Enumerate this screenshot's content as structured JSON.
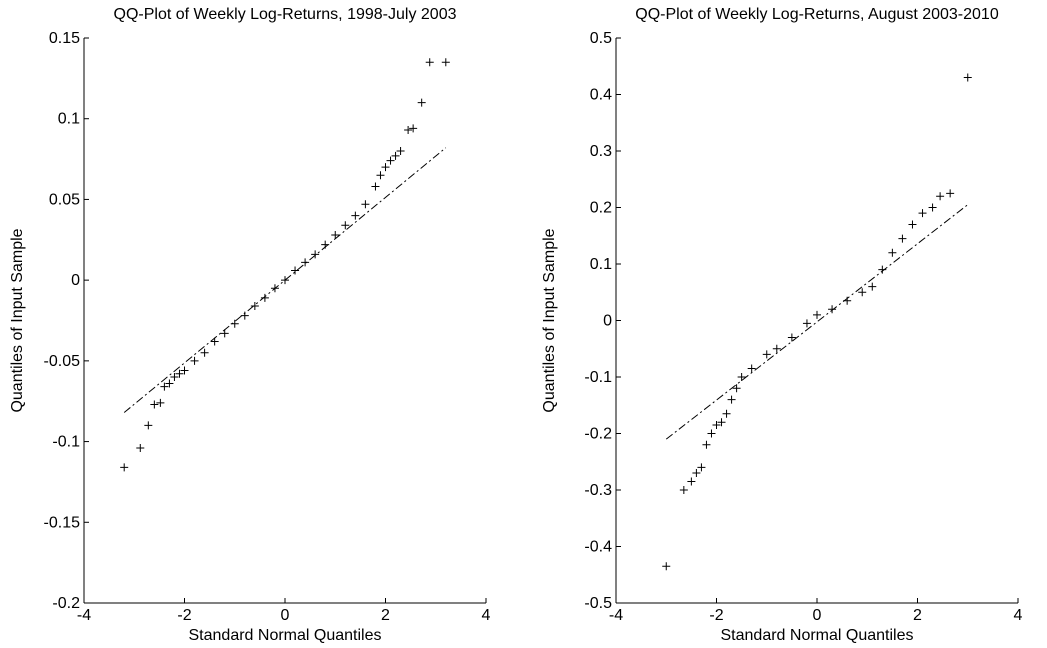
{
  "chart_data": [
    {
      "type": "scatter",
      "title": "QQ-Plot of Weekly Log-Returns, 1998-July 2003",
      "x_label": "Standard Normal Quantiles",
      "y_label": "Quantiles of Input Sample",
      "xlim": [
        -4,
        4
      ],
      "xticks": [
        -4,
        -2,
        0,
        2,
        4
      ],
      "ylim": [
        -0.2,
        0.15
      ],
      "yticks": [
        -0.2,
        -0.15,
        -0.1,
        -0.05,
        0,
        0.05,
        0.1,
        0.15
      ],
      "points": {
        "color": "#000000",
        "x": [
          -3.2,
          -2.88,
          -2.72,
          -2.6,
          -2.48,
          -2.4,
          -2.3,
          -2.2,
          -2.1,
          -2.0,
          -1.8,
          -1.6,
          -1.4,
          -1.2,
          -1.0,
          -0.8,
          -0.6,
          -0.4,
          -0.2,
          0,
          0.2,
          0.4,
          0.6,
          0.8,
          1.0,
          1.2,
          1.4,
          1.6,
          1.8,
          1.9,
          2.0,
          2.1,
          2.2,
          2.3,
          2.45,
          2.55,
          2.72,
          2.88,
          3.2
        ],
        "values": [
          -0.116,
          -0.104,
          -0.09,
          -0.077,
          -0.076,
          -0.066,
          -0.064,
          -0.06,
          -0.058,
          -0.056,
          -0.05,
          -0.045,
          -0.038,
          -0.033,
          -0.027,
          -0.022,
          -0.016,
          -0.011,
          -0.005,
          0,
          0.006,
          0.011,
          0.016,
          0.022,
          0.028,
          0.034,
          0.04,
          0.047,
          0.058,
          0.065,
          0.07,
          0.074,
          0.077,
          0.08,
          0.093,
          0.094,
          0.11,
          0.135,
          0.135
        ]
      },
      "reference_line": {
        "color": "#000000",
        "x": [
          -3.2,
          3.2
        ],
        "values": [
          -0.082,
          0.082
        ]
      }
    },
    {
      "type": "scatter",
      "title": "QQ-Plot of Weekly Log-Returns, August 2003-2010",
      "x_label": "Standard Normal Quantiles",
      "y_label": "Quantiles of Input Sample",
      "xlim": [
        -4,
        4
      ],
      "xticks": [
        -4,
        -2,
        0,
        2,
        4
      ],
      "ylim": [
        -0.5,
        0.5
      ],
      "yticks": [
        -0.5,
        -0.4,
        -0.3,
        -0.2,
        -0.1,
        0,
        0.1,
        0.2,
        0.3,
        0.4,
        0.5
      ],
      "points": {
        "color": "#000000",
        "x": [
          -3,
          -2.65,
          -2.5,
          -2.4,
          -2.3,
          -2.2,
          -2.1,
          -2.0,
          -1.9,
          -1.8,
          -1.7,
          -1.6,
          -1.5,
          -1.3,
          -1.0,
          -0.8,
          -0.5,
          -0.2,
          0,
          0.3,
          0.6,
          0.9,
          1.1,
          1.3,
          1.5,
          1.7,
          1.9,
          2.1,
          2.3,
          2.45,
          2.65,
          3.0
        ],
        "values": [
          -0.435,
          -0.3,
          -0.285,
          -0.27,
          -0.26,
          -0.22,
          -0.2,
          -0.185,
          -0.18,
          -0.165,
          -0.14,
          -0.12,
          -0.1,
          -0.085,
          -0.06,
          -0.05,
          -0.03,
          -0.005,
          0.01,
          0.02,
          0.035,
          0.05,
          0.06,
          0.09,
          0.12,
          0.145,
          0.17,
          0.19,
          0.2,
          0.22,
          0.225,
          0.43
        ]
      },
      "reference_line": {
        "color": "#000000",
        "x": [
          -3,
          3
        ],
        "values": [
          -0.21,
          0.205
        ]
      }
    }
  ]
}
